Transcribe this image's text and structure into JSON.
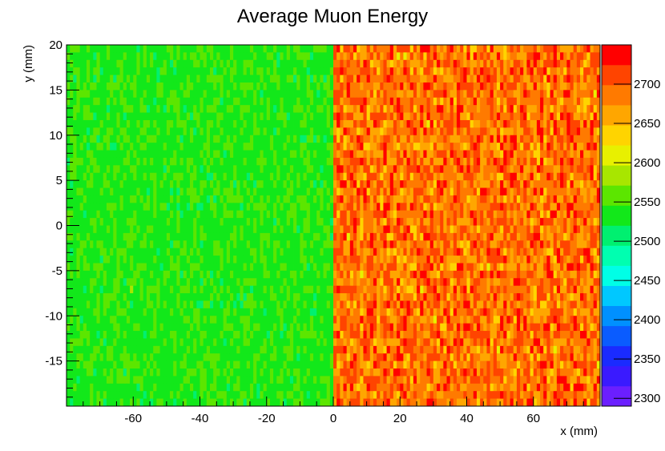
{
  "chart_data": {
    "type": "heatmap",
    "title": "Average Muon Energy",
    "xlabel": "x (mm)",
    "ylabel": "y (mm)",
    "xlim": [
      -80,
      80
    ],
    "ylim": [
      -20,
      20
    ],
    "x_ticks": [
      -60,
      -40,
      -20,
      0,
      20,
      40,
      60
    ],
    "y_ticks": [
      -15,
      -10,
      -5,
      0,
      5,
      10,
      15,
      20
    ],
    "z_range": [
      2290,
      2750
    ],
    "z_ticks": [
      2300,
      2350,
      2400,
      2450,
      2500,
      2550,
      2600,
      2650,
      2700
    ],
    "regions": [
      {
        "x_range": [
          -80,
          0
        ],
        "mean_value": 2540
      },
      {
        "x_range": [
          0,
          80
        ],
        "mean_value": 2690
      }
    ],
    "grid": false,
    "colorbar": "right",
    "colors": {
      "palette": [
        "#6b1fff",
        "#3a1aff",
        "#1a2bff",
        "#0a5cff",
        "#0090ff",
        "#00c8ff",
        "#00ffe6",
        "#00ffb0",
        "#00f070",
        "#12e81a",
        "#5ce600",
        "#a8e600",
        "#e8f000",
        "#ffd400",
        "#ffa600",
        "#ff7a00",
        "#ff4400",
        "#ff0000"
      ]
    }
  }
}
